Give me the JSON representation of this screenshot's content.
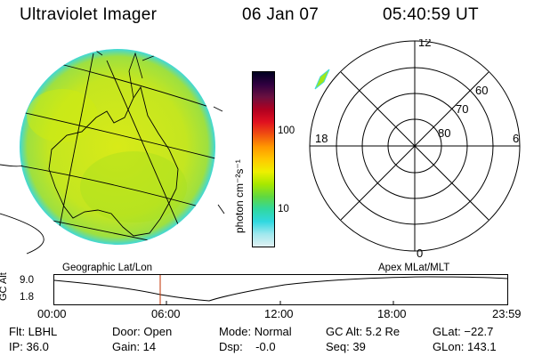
{
  "header": {
    "instrument": "Ultraviolet Imager",
    "date": "06 Jan 07",
    "time": "05:40:59 UT"
  },
  "colorbar": {
    "unit_label": "photon cm⁻²s⁻¹",
    "ticks": [
      "100",
      "10"
    ],
    "colors": [
      "#000020",
      "#300040",
      "#6a1040",
      "#b00020",
      "#e01020",
      "#f05010",
      "#ff9800",
      "#ffc800",
      "#eef000",
      "#a8e800",
      "#60d840",
      "#30d8a0",
      "#30d8e0",
      "#a0e8ee",
      "#e0f0f2"
    ]
  },
  "polar_plot": {
    "mlt_labels": {
      "top": "12",
      "bottom": "0",
      "left": "18",
      "right": "6"
    },
    "mlat_labels": [
      "60",
      "70",
      "80"
    ]
  },
  "timeline": {
    "left_title": "Geographic Lat/Lon",
    "right_title": "Apex MLat/MLT",
    "y_axis_label": "GC Alt",
    "y_ticks": [
      "9.0",
      "1.8"
    ],
    "x_ticks": [
      "00:00",
      "06:00",
      "12:00",
      "18:00",
      "23:59"
    ]
  },
  "status": {
    "filter": "Flt: LBHL",
    "ip": "IP: 36.0",
    "door": "Door: Open",
    "gain": "Gain: 14",
    "mode": "Mode: Normal",
    "dsp": "Dsp:    -0.0",
    "gc_alt": "GC Alt: 5.2 Re",
    "seq": "Seq: 39",
    "glat": "GLat: −22.7",
    "glon": "GLon: 143.1"
  },
  "colors": {
    "disk_base": "#c8e818",
    "disk_rim": "#40d8d8",
    "polar_blob": "#a0e818",
    "current_time_marker": "#c03000"
  }
}
